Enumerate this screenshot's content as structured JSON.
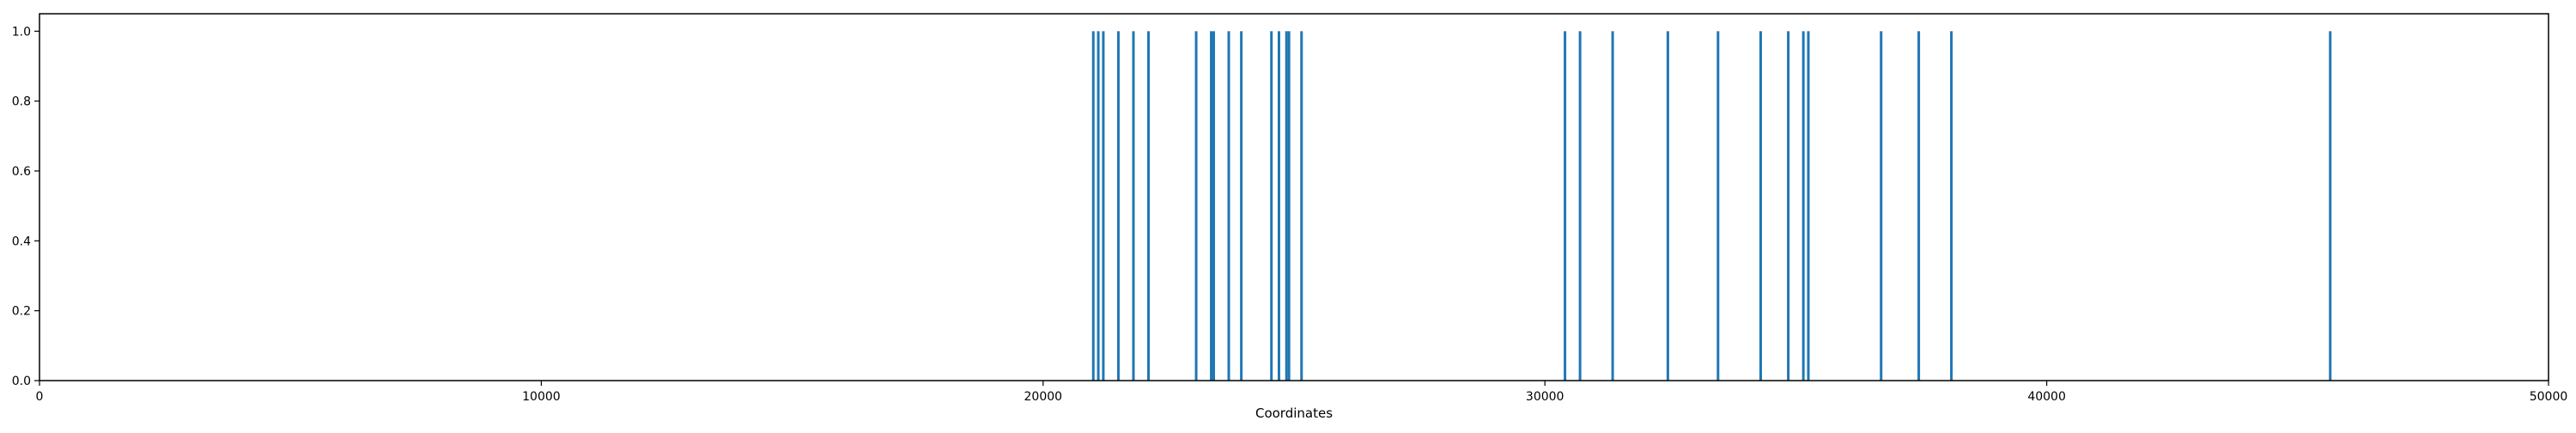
{
  "chart_data": {
    "type": "bar",
    "title": "",
    "xlabel": "Coordinates",
    "ylabel": "",
    "xlim": [
      0,
      50000
    ],
    "ylim": [
      0,
      1.05
    ],
    "x_ticks": [
      0,
      10000,
      20000,
      30000,
      40000,
      50000
    ],
    "x_tick_labels": [
      "0",
      "10000",
      "20000",
      "30000",
      "40000",
      "50000"
    ],
    "y_ticks": [
      0.0,
      0.2,
      0.4,
      0.6,
      0.8,
      1.0
    ],
    "y_tick_labels": [
      "0.0",
      "0.2",
      "0.4",
      "0.6",
      "0.8",
      "1.0"
    ],
    "grid": false,
    "bar_color": "#1f77b4",
    "x": [
      21000,
      21100,
      21200,
      21500,
      21800,
      22100,
      23050,
      23350,
      23400,
      23700,
      23950,
      24550,
      24700,
      24850,
      24900,
      25150,
      30400,
      30700,
      31350,
      32450,
      33450,
      34300,
      34850,
      35150,
      35250,
      36700,
      37450,
      38100,
      45650
    ],
    "values": [
      1,
      1,
      1,
      1,
      1,
      1,
      1,
      1,
      1,
      1,
      1,
      1,
      1,
      1,
      1,
      1,
      1,
      1,
      1,
      1,
      1,
      1,
      1,
      1,
      1,
      1,
      1,
      1,
      1
    ]
  }
}
